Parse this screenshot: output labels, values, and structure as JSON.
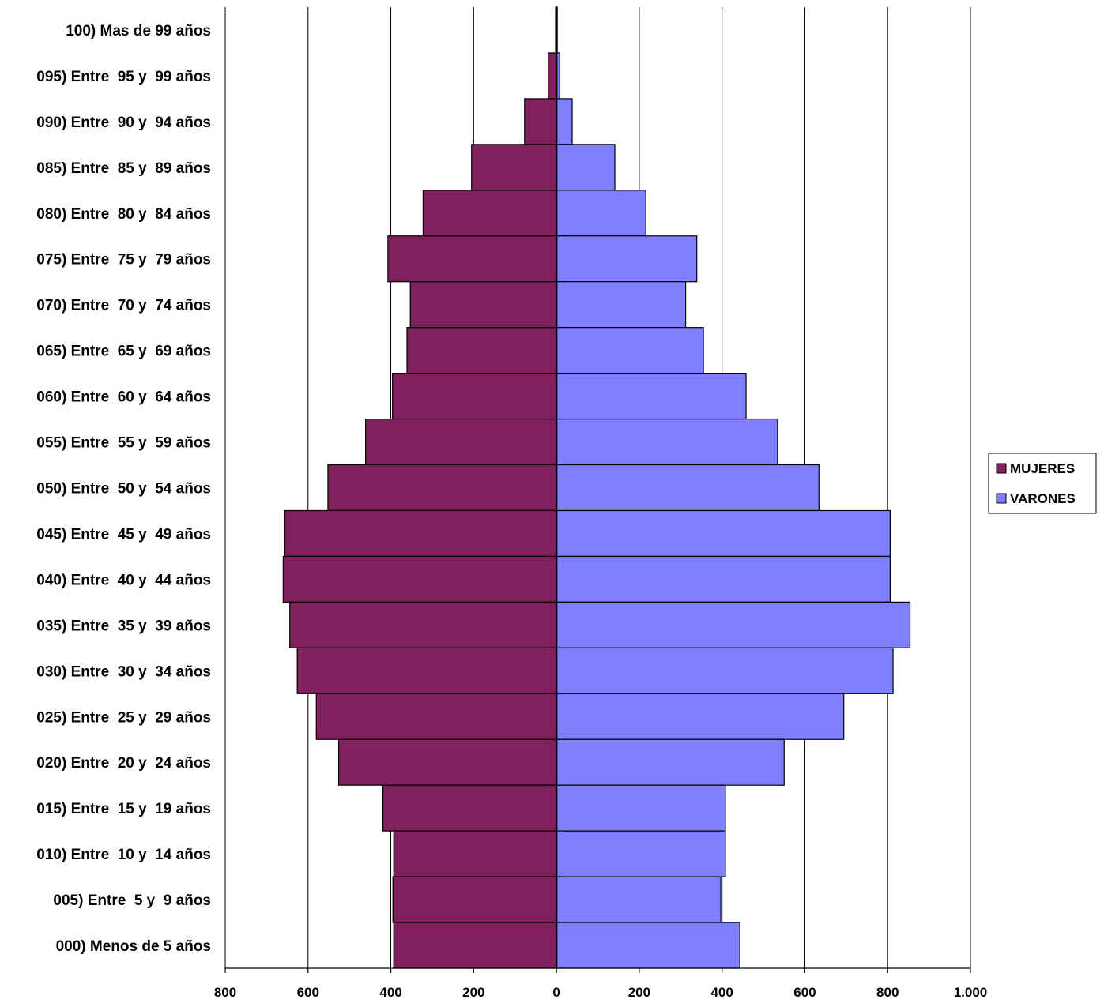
{
  "chart_data": {
    "type": "bar",
    "orientation": "horizontal",
    "layout": "population-pyramid",
    "categories": [
      "100) Mas de 99 años",
      "095) Entre  95 y  99 años",
      "090) Entre  90 y  94 años",
      "085) Entre  85 y  89 años",
      "080) Entre  80 y  84 años",
      "075) Entre  75 y  79 años",
      "070) Entre  70 y  74 años",
      "065) Entre  65 y  69 años",
      "060) Entre  60 y  64 años",
      "055) Entre  55 y  59 años",
      "050) Entre  50 y  54 años",
      "045) Entre  45 y  49 años",
      "040) Entre  40 y  44 años",
      "035) Entre  35 y  39 años",
      "030) Entre  30 y  34 años",
      "025) Entre  25 y  29 años",
      "020) Entre  20 y  24 años",
      "015) Entre  15 y  19 años",
      "010) Entre  10 y  14 años",
      "005) Entre  5 y  9 años",
      "000) Menos de 5 años"
    ],
    "series": [
      {
        "name": "MUJERES",
        "color": "#80205C",
        "side": "left",
        "values": [
          2,
          20,
          77,
          205,
          322,
          407,
          353,
          361,
          396,
          461,
          552,
          656,
          660,
          644,
          626,
          580,
          526,
          419,
          393,
          395,
          393
        ]
      },
      {
        "name": "VARONES",
        "color": "#8080FF",
        "side": "right",
        "values": [
          2,
          8,
          38,
          141,
          216,
          339,
          312,
          355,
          458,
          534,
          634,
          806,
          806,
          854,
          813,
          694,
          550,
          408,
          408,
          397,
          443
        ]
      }
    ],
    "xlim": [
      -800,
      1000
    ],
    "x_ticks": [
      -800,
      -600,
      -400,
      -200,
      0,
      200,
      400,
      600,
      800,
      1000
    ],
    "x_tick_labels": [
      "800",
      "600",
      "400",
      "200",
      "0",
      "200",
      "400",
      "600",
      "800",
      "1.000"
    ],
    "grid": "vertical",
    "legend": "right",
    "bar_edge_color": "#000000"
  }
}
